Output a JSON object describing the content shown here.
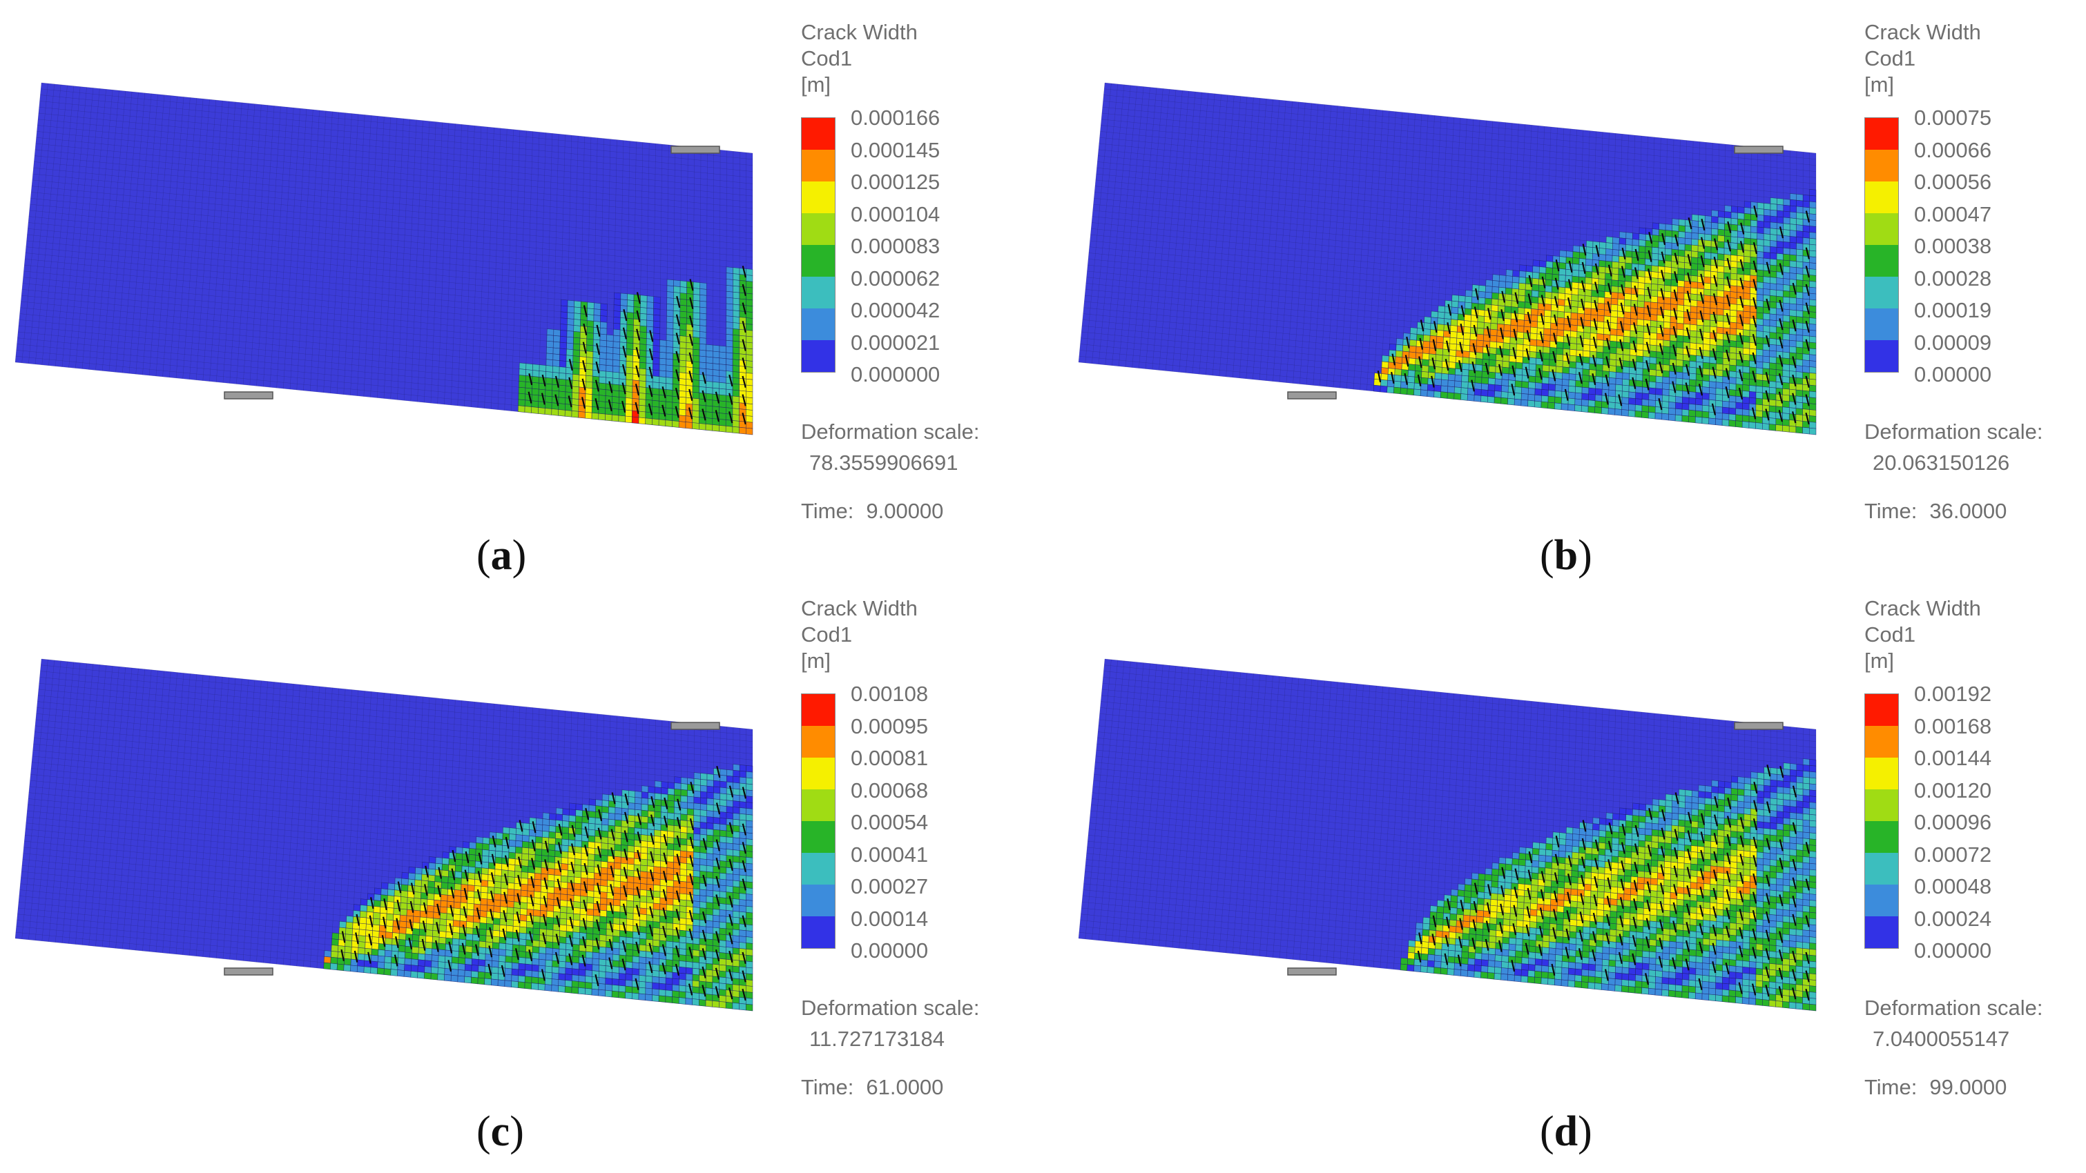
{
  "panels": [
    {
      "id": "a",
      "caption_letter": "a",
      "legend_title": [
        "Crack Width",
        "Cod1",
        "[m]"
      ],
      "legend_values": [
        "0.000166",
        "0.000145",
        "0.000125",
        "0.000104",
        "0.000083",
        "0.000062",
        "0.000042",
        "0.000021",
        "0.000000"
      ],
      "deformation_label": "Deformation scale:",
      "deformation_value": "78.3559906691",
      "time_label": "Time:",
      "time_value": "9.00000"
    },
    {
      "id": "b",
      "caption_letter": "b",
      "legend_title": [
        "Crack Width",
        "Cod1",
        "[m]"
      ],
      "legend_values": [
        "0.00075",
        "0.00066",
        "0.00056",
        "0.00047",
        "0.00038",
        "0.00028",
        "0.00019",
        "0.00009",
        "0.00000"
      ],
      "deformation_label": "Deformation scale:",
      "deformation_value": "20.063150126",
      "time_label": "Time:",
      "time_value": "36.0000"
    },
    {
      "id": "c",
      "caption_letter": "c",
      "legend_title": [
        "Crack Width",
        "Cod1",
        "[m]"
      ],
      "legend_values": [
        "0.00108",
        "0.00095",
        "0.00081",
        "0.00068",
        "0.00054",
        "0.00041",
        "0.00027",
        "0.00014",
        "0.00000"
      ],
      "deformation_label": "Deformation scale:",
      "deformation_value": "11.727173184",
      "time_label": "Time:",
      "time_value": "61.0000"
    },
    {
      "id": "d",
      "caption_letter": "d",
      "legend_title": [
        "Crack Width",
        "Cod1",
        "[m]"
      ],
      "legend_values": [
        "0.00192",
        "0.00168",
        "0.00144",
        "0.00120",
        "0.00096",
        "0.00072",
        "0.00048",
        "0.00024",
        "0.00000"
      ],
      "deformation_label": "Deformation scale:",
      "deformation_value": "7.0400055147",
      "time_label": "Time:",
      "time_value": "99.0000"
    }
  ],
  "colors": {
    "scale": [
      "#ff1a00",
      "#ff8c00",
      "#f5f000",
      "#a0dc14",
      "#28b428",
      "#3cbebe",
      "#3c8cdc",
      "#3232e6"
    ],
    "background_blue": "#3c3cd8",
    "mesh_line": "#1e1e60",
    "crack_line": "#0a0a0a",
    "support_plate": "#9a9a9a",
    "text": "#6f6f6f"
  }
}
